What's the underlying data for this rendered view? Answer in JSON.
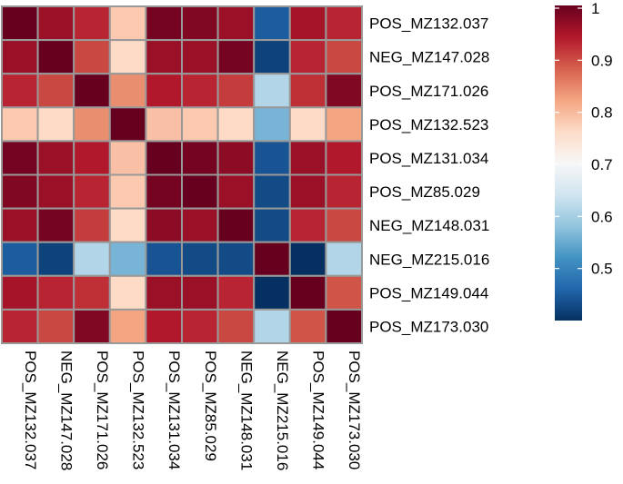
{
  "chart_data": {
    "type": "heatmap",
    "title": "",
    "xlabel": "",
    "ylabel": "",
    "rows": [
      "POS_MZ132.037",
      "NEG_MZ147.028",
      "POS_MZ171.026",
      "POS_MZ132.523",
      "POS_MZ131.034",
      "POS_MZ85.029",
      "NEG_MZ148.031",
      "NEG_MZ215.016",
      "POS_MZ149.044",
      "POS_MZ173.030"
    ],
    "columns": [
      "POS_MZ132.037",
      "NEG_MZ147.028",
      "POS_MZ171.026",
      "POS_MZ132.523",
      "POS_MZ131.034",
      "POS_MZ85.029",
      "NEG_MZ148.031",
      "NEG_MZ215.016",
      "POS_MZ149.044",
      "POS_MZ173.030"
    ],
    "values": [
      [
        1.0,
        0.96,
        0.93,
        0.78,
        0.99,
        0.98,
        0.96,
        0.45,
        0.95,
        0.93
      ],
      [
        0.96,
        1.0,
        0.9,
        0.76,
        0.96,
        0.96,
        0.99,
        0.42,
        0.93,
        0.9
      ],
      [
        0.93,
        0.9,
        1.0,
        0.84,
        0.94,
        0.93,
        0.91,
        0.61,
        0.92,
        0.98
      ],
      [
        0.78,
        0.76,
        0.84,
        1.0,
        0.79,
        0.78,
        0.76,
        0.56,
        0.76,
        0.82
      ],
      [
        0.99,
        0.96,
        0.94,
        0.79,
        1.0,
        0.99,
        0.97,
        0.44,
        0.96,
        0.94
      ],
      [
        0.98,
        0.96,
        0.93,
        0.78,
        0.99,
        1.0,
        0.96,
        0.43,
        0.96,
        0.93
      ],
      [
        0.96,
        0.99,
        0.91,
        0.76,
        0.97,
        0.96,
        1.0,
        0.43,
        0.93,
        0.9
      ],
      [
        0.45,
        0.42,
        0.61,
        0.56,
        0.44,
        0.43,
        0.43,
        1.0,
        0.4,
        0.61
      ],
      [
        0.95,
        0.93,
        0.92,
        0.76,
        0.96,
        0.96,
        0.93,
        0.4,
        1.0,
        0.89
      ],
      [
        0.93,
        0.9,
        0.98,
        0.82,
        0.94,
        0.93,
        0.9,
        0.61,
        0.89,
        1.0
      ]
    ],
    "color_scale": {
      "min": 0.4,
      "max": 1.0,
      "stops": [
        "#053061",
        "#2166ac",
        "#4393c3",
        "#92c5de",
        "#d1e5f0",
        "#f7f7f7",
        "#fddbc7",
        "#f4a582",
        "#d6604d",
        "#b2182b",
        "#67001f"
      ],
      "ticks": [
        1,
        0.9,
        0.8,
        0.7,
        0.6,
        0.5
      ],
      "tick_labels": [
        "1",
        "0.9",
        "0.8",
        "0.7",
        "0.6",
        "0.5"
      ]
    },
    "grid": true,
    "grid_color": "#999999",
    "legend_position": "right"
  }
}
